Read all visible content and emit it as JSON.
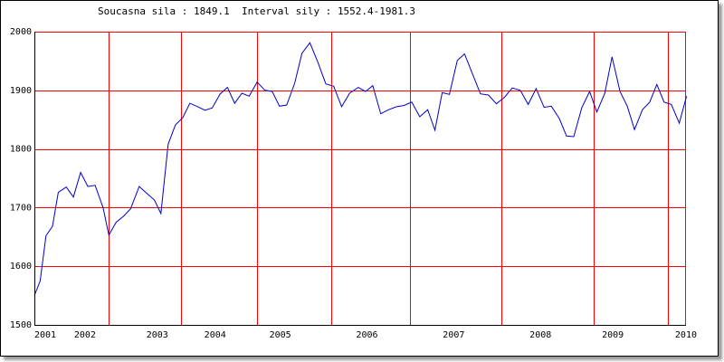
{
  "header": {
    "current_label": "Soucasna sila",
    "current_value": "1849.1",
    "interval_label": "Interval sily",
    "interval_value": "1552.4-1981.3"
  },
  "chart_data": {
    "type": "line",
    "title": "",
    "xlabel": "",
    "ylabel": "",
    "xlim": [
      2001.0,
      2010.0
    ],
    "ylim": [
      1500,
      2000
    ],
    "y_ticks": [
      1500,
      1600,
      1700,
      1800,
      1900,
      2000
    ],
    "x_tick_labels": [
      {
        "label": "2001",
        "x": 2001.0
      },
      {
        "label": "2002",
        "x": 2001.7
      },
      {
        "label": "2003",
        "x": 2002.7
      },
      {
        "label": "2004",
        "x": 2003.5
      },
      {
        "label": "2005",
        "x": 2004.4
      },
      {
        "label": "2006",
        "x": 2005.6
      },
      {
        "label": "2007",
        "x": 2006.8
      },
      {
        "label": "2008",
        "x": 2008.0
      },
      {
        "label": "2009",
        "x": 2009.0
      },
      {
        "label": "2010",
        "x": 2010.0
      }
    ],
    "vertical_gridlines": [
      2001.0,
      2002.03,
      2003.03,
      2004.08,
      2005.1,
      2006.2,
      2007.46,
      2008.73,
      2009.76
    ],
    "grid": true,
    "line_color": "#0000cc",
    "grid_color": "#ff0000",
    "series": [
      {
        "values": [
          [
            2001.0,
            1550
          ],
          [
            2001.08,
            1575
          ],
          [
            2001.16,
            1652
          ],
          [
            2001.25,
            1668
          ],
          [
            2001.33,
            1726
          ],
          [
            2001.44,
            1735
          ],
          [
            2001.54,
            1718
          ],
          [
            2001.64,
            1760
          ],
          [
            2001.74,
            1736
          ],
          [
            2001.84,
            1738
          ],
          [
            2001.95,
            1700
          ],
          [
            2002.03,
            1653
          ],
          [
            2002.13,
            1675
          ],
          [
            2002.23,
            1685
          ],
          [
            2002.33,
            1698
          ],
          [
            2002.45,
            1736
          ],
          [
            2002.55,
            1725
          ],
          [
            2002.66,
            1713
          ],
          [
            2002.75,
            1690
          ],
          [
            2002.85,
            1808
          ],
          [
            2002.95,
            1841
          ],
          [
            2003.05,
            1853
          ],
          [
            2003.15,
            1878
          ],
          [
            2003.26,
            1872
          ],
          [
            2003.36,
            1866
          ],
          [
            2003.46,
            1870
          ],
          [
            2003.57,
            1894
          ],
          [
            2003.67,
            1905
          ],
          [
            2003.77,
            1878
          ],
          [
            2003.87,
            1895
          ],
          [
            2003.97,
            1890
          ],
          [
            2004.08,
            1914
          ],
          [
            2004.19,
            1900
          ],
          [
            2004.29,
            1898
          ],
          [
            2004.39,
            1873
          ],
          [
            2004.49,
            1875
          ],
          [
            2004.6,
            1912
          ],
          [
            2004.7,
            1963
          ],
          [
            2004.81,
            1981
          ],
          [
            2004.92,
            1948
          ],
          [
            2005.03,
            1911
          ],
          [
            2005.14,
            1907
          ],
          [
            2005.25,
            1872
          ],
          [
            2005.36,
            1895
          ],
          [
            2005.48,
            1905
          ],
          [
            2005.58,
            1898
          ],
          [
            2005.68,
            1908
          ],
          [
            2005.79,
            1860
          ],
          [
            2005.9,
            1867
          ],
          [
            2006.01,
            1872
          ],
          [
            2006.11,
            1874
          ],
          [
            2006.22,
            1880
          ],
          [
            2006.33,
            1855
          ],
          [
            2006.44,
            1867
          ],
          [
            2006.54,
            1832
          ],
          [
            2006.64,
            1896
          ],
          [
            2006.74,
            1893
          ],
          [
            2006.85,
            1951
          ],
          [
            2006.95,
            1962
          ],
          [
            2007.06,
            1928
          ],
          [
            2007.17,
            1894
          ],
          [
            2007.28,
            1892
          ],
          [
            2007.39,
            1877
          ],
          [
            2007.5,
            1888
          ],
          [
            2007.61,
            1904
          ],
          [
            2007.72,
            1900
          ],
          [
            2007.83,
            1876
          ],
          [
            2007.94,
            1903
          ],
          [
            2008.05,
            1871
          ],
          [
            2008.15,
            1873
          ],
          [
            2008.26,
            1852
          ],
          [
            2008.36,
            1822
          ],
          [
            2008.46,
            1821
          ],
          [
            2008.57,
            1870
          ],
          [
            2008.68,
            1898
          ],
          [
            2008.78,
            1863
          ],
          [
            2008.89,
            1895
          ],
          [
            2008.99,
            1957
          ],
          [
            2009.1,
            1898
          ],
          [
            2009.2,
            1873
          ],
          [
            2009.3,
            1833
          ],
          [
            2009.41,
            1867
          ],
          [
            2009.51,
            1880
          ],
          [
            2009.61,
            1910
          ],
          [
            2009.71,
            1880
          ],
          [
            2009.81,
            1876
          ],
          [
            2009.92,
            1844
          ],
          [
            2010.02,
            1890
          ]
        ]
      }
    ]
  }
}
